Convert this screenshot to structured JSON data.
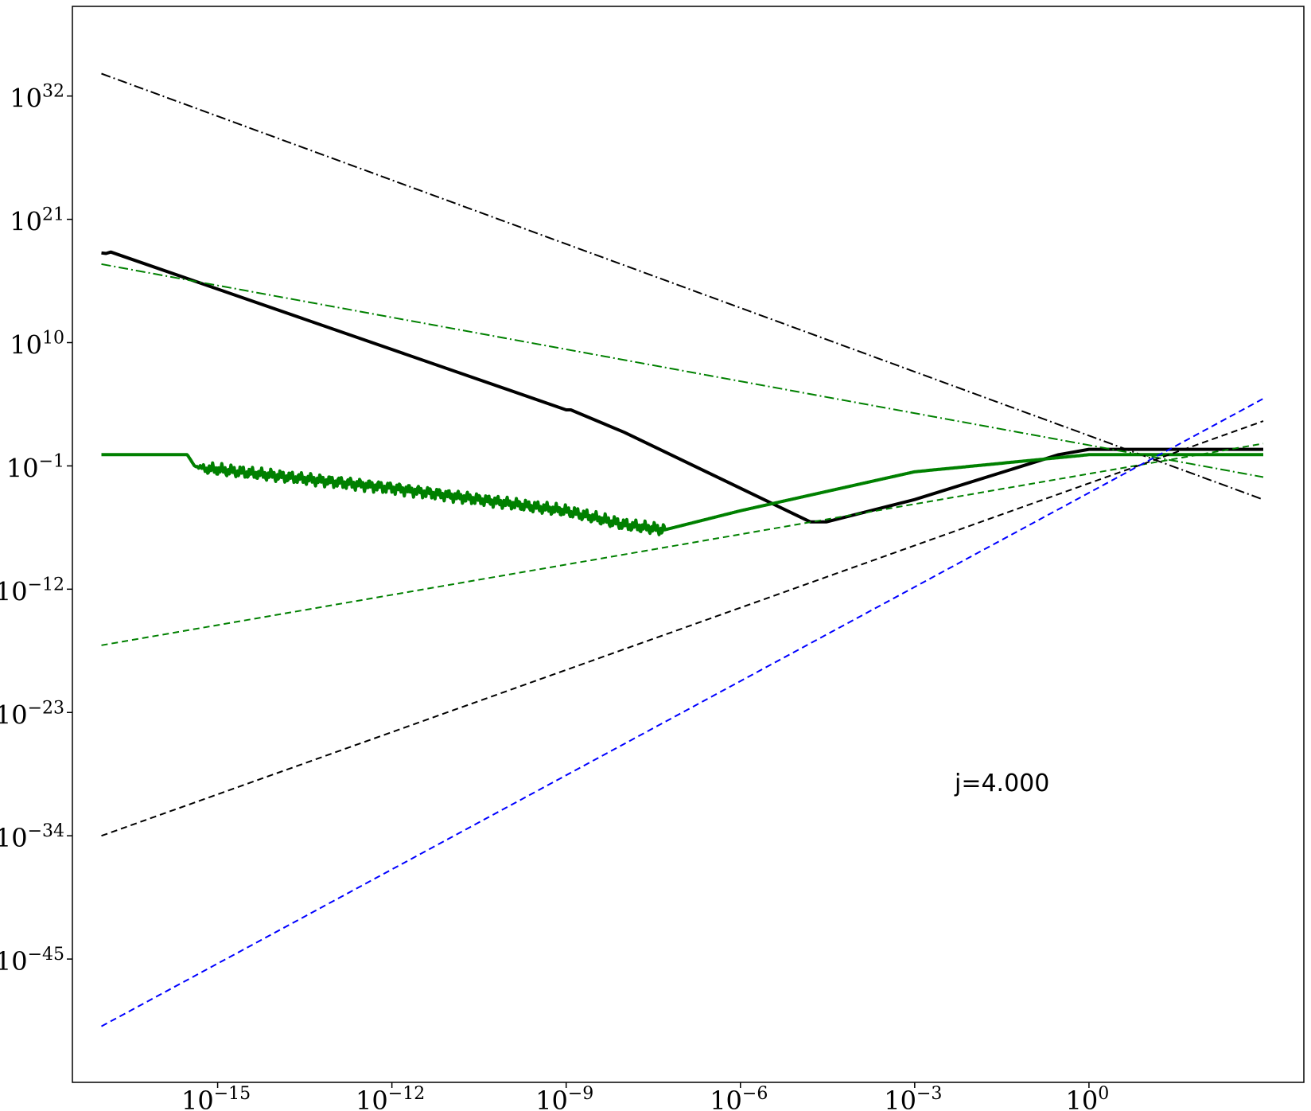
{
  "chart_data": {
    "type": "line",
    "xscale": "log",
    "yscale": "log",
    "xlim": [
      3.16e-18,
      5000.0
    ],
    "ylim": [
      1e-56,
      1e+40
    ],
    "x_ticks": [
      {
        "base": "10",
        "exp": "−15",
        "value": 1e-15
      },
      {
        "base": "10",
        "exp": "−12",
        "value": 1e-12
      },
      {
        "base": "10",
        "exp": "−9",
        "value": 1e-09
      },
      {
        "base": "10",
        "exp": "−6",
        "value": 1e-06
      },
      {
        "base": "10",
        "exp": "−3",
        "value": 0.001
      },
      {
        "base": "10",
        "exp": "0",
        "value": 1
      }
    ],
    "y_ticks": [
      {
        "base": "10",
        "exp": "32",
        "value": 1e+32
      },
      {
        "base": "10",
        "exp": "21",
        "value": 1e+21
      },
      {
        "base": "10",
        "exp": "10",
        "value": 10000000000.0
      },
      {
        "base": "10",
        "exp": "−1",
        "value": 0.1
      },
      {
        "base": "10",
        "exp": "−12",
        "value": 1e-12
      },
      {
        "base": "10",
        "exp": "−23",
        "value": 1e-23
      },
      {
        "base": "10",
        "exp": "−34",
        "value": 1e-34
      },
      {
        "base": "10",
        "exp": "−45",
        "value": 1e-45
      }
    ],
    "annotation": {
      "text": "j=4.000",
      "x": 0.002,
      "y": 1e-30
    },
    "grid": false,
    "legend": "none",
    "series": [
      {
        "color": "#000000",
        "style": "solid",
        "width": "thick",
        "points": [
          [
            1e-17,
            1e+18
          ],
          [
            1.2e-17,
            9e+17
          ],
          [
            1.45e-17,
            1.2e+18
          ],
          [
            1e-09,
            10000.0
          ],
          [
            1.2e-09,
            10000.0
          ],
          [
            1e-08,
            100.0
          ],
          [
            1.6e-05,
            1e-06
          ],
          [
            3e-05,
            1e-06
          ],
          [
            0.001,
            0.0001
          ],
          [
            0.3,
            1.0
          ],
          [
            1.0,
            3.0
          ],
          [
            2.0,
            3.0
          ],
          [
            1000,
            3.0
          ]
        ]
      },
      {
        "color": "#008000",
        "style": "solid",
        "width": "thick",
        "noisy_from": 4e-16,
        "noisy_to": 5e-08,
        "points": [
          [
            1e-17,
            1.0
          ],
          [
            1e-16,
            1.0
          ],
          [
            3e-16,
            1.0
          ],
          [
            4e-16,
            0.1
          ],
          [
            6e-16,
            0.06
          ],
          [
            1e-15,
            0.05
          ],
          [
            1e-12,
            0.001
          ],
          [
            1e-09,
            1e-05
          ],
          [
            1e-08,
            6e-07
          ],
          [
            5e-08,
            2e-07
          ],
          [
            1e-06,
            1e-05
          ],
          [
            0.001,
            0.03
          ],
          [
            1.0,
            1.0
          ],
          [
            1000,
            1.0
          ]
        ]
      },
      {
        "color": "#000000",
        "style": "dashdot",
        "width": "thin",
        "points": [
          [
            1e-17,
            1e+34
          ],
          [
            1000,
            0.0001
          ]
        ]
      },
      {
        "color": "#008000",
        "style": "dashdot",
        "width": "thin",
        "points": [
          [
            1e-17,
            1e+17
          ],
          [
            1000,
            0.01
          ]
        ]
      },
      {
        "color": "#008000",
        "style": "dashed",
        "width": "thin",
        "points": [
          [
            1e-17,
            1e-17
          ],
          [
            1000,
            10.0
          ]
        ]
      },
      {
        "color": "#000000",
        "style": "dashed",
        "width": "thin",
        "points": [
          [
            1e-17,
            1e-34
          ],
          [
            1000,
            1000.0
          ]
        ]
      },
      {
        "color": "#0000ff",
        "style": "dashed",
        "width": "thin",
        "points": [
          [
            1e-17,
            1e-51
          ],
          [
            1000,
            100000.0
          ]
        ]
      }
    ]
  }
}
